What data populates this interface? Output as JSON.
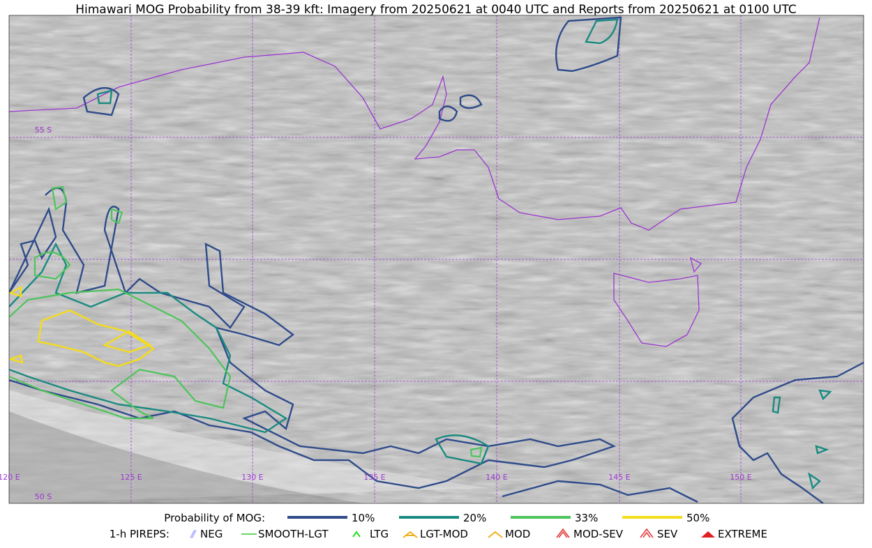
{
  "title": "Himawari MOG Probability from 38-39 kft: Imagery from 20250621 at 0040 UTC and Reports from 20250621 at 0100 UTC",
  "grid_labels": [
    "55 S",
    "50 S",
    "120 E",
    "125 E",
    "130 E",
    "135 E",
    "140 E",
    "145 E",
    "150 E"
  ],
  "legend": {
    "probability": {
      "label": "Probability of MOG:",
      "items": [
        "10%",
        "20%",
        "33%",
        "50%"
      ]
    },
    "pireps": {
      "label": "1-h PIREPS:",
      "items": [
        "NEG",
        "SMOOTH-LGT",
        "LTG",
        "LGT-MOD",
        "MOD",
        "MOD-SEV",
        "SEV",
        "EXTREME"
      ]
    }
  }
}
